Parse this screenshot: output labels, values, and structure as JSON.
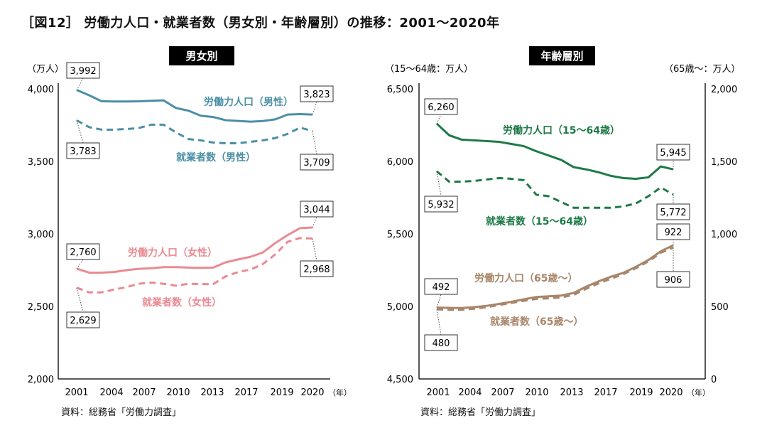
{
  "title": "［図12］ 労働力人口・就業者数（男女別・年齢層別）の推移：2001〜2020年",
  "colors": {
    "male": "#4b8fa5",
    "female": "#ea8a92",
    "young": "#1e7a46",
    "old": "#a8866a",
    "axis": "#222"
  },
  "chart_data": [
    {
      "type": "line",
      "title": "男女別",
      "ylabel": "（万人）",
      "ylim": [
        2000,
        4000
      ],
      "yticks": [
        "2,000",
        "2,500",
        "3,000",
        "3,500",
        "4,000"
      ],
      "xticks": [
        "2001",
        "2004",
        "2007",
        "2010",
        "2013",
        "2017",
        "2019",
        "2020"
      ],
      "xunit": "（年）",
      "x": [
        2001,
        2002,
        2003,
        2004,
        2005,
        2006,
        2007,
        2008,
        2009,
        2010,
        2011,
        2012,
        2013,
        2014,
        2015,
        2016,
        2017,
        2018,
        2019,
        2020
      ],
      "series": [
        {
          "name": "労働力人口（男性）",
          "style": "solid",
          "color": "#4b8fa5",
          "values": [
            3992,
            3956,
            3915,
            3913,
            3913,
            3914,
            3918,
            3921,
            3868,
            3850,
            3815,
            3806,
            3784,
            3779,
            3774,
            3778,
            3790,
            3823,
            3826,
            3823
          ],
          "start_label": "3,992",
          "end_label": "3,823"
        },
        {
          "name": "就業者数（男性）",
          "style": "dashed",
          "color": "#4b8fa5",
          "values": [
            3783,
            3736,
            3719,
            3719,
            3723,
            3730,
            3753,
            3753,
            3700,
            3654,
            3645,
            3630,
            3625,
            3625,
            3635,
            3645,
            3661,
            3690,
            3733,
            3709
          ],
          "start_label": "3,783",
          "end_label": "3,709"
        },
        {
          "name": "労働力人口（女性）",
          "style": "solid",
          "color": "#ea8a92",
          "values": [
            2760,
            2733,
            2733,
            2737,
            2750,
            2759,
            2763,
            2771,
            2771,
            2768,
            2766,
            2768,
            2804,
            2824,
            2842,
            2872,
            2937,
            2992,
            3040,
            3044
          ],
          "start_label": "2,760",
          "end_label": "3,044"
        },
        {
          "name": "就業者数（女性）",
          "style": "dashed",
          "color": "#ea8a92",
          "values": [
            2629,
            2597,
            2597,
            2616,
            2633,
            2656,
            2665,
            2656,
            2643,
            2656,
            2654,
            2654,
            2707,
            2737,
            2754,
            2792,
            2859,
            2946,
            2972,
            2968
          ],
          "start_label": "2,629",
          "end_label": "2,968"
        }
      ],
      "source": "資料：総務省「労働力調査」"
    },
    {
      "type": "line",
      "title": "年齢層別",
      "ylabel": "（15〜64歳：万人）",
      "ylabel_right": "（65歳〜：万人）",
      "ylim": [
        4500,
        6500
      ],
      "ylim_right": [
        0,
        2000
      ],
      "yticks": [
        "4,500",
        "5,000",
        "5,500",
        "6,000",
        "6,500"
      ],
      "yticks_right": [
        "0",
        "500",
        "1,000",
        "1,500",
        "2,000"
      ],
      "xticks": [
        "2001",
        "2004",
        "2007",
        "2010",
        "2013",
        "2017",
        "2019",
        "2020"
      ],
      "xunit": "（年）",
      "x": [
        2001,
        2002,
        2003,
        2004,
        2005,
        2006,
        2007,
        2008,
        2009,
        2010,
        2011,
        2012,
        2013,
        2014,
        2015,
        2016,
        2017,
        2018,
        2019,
        2020
      ],
      "series": [
        {
          "name": "労働力人口（15〜64歳）",
          "axis": "left",
          "style": "solid",
          "color": "#1e7a46",
          "values": [
            6260,
            6180,
            6150,
            6145,
            6140,
            6135,
            6120,
            6105,
            6070,
            6040,
            6010,
            5960,
            5945,
            5925,
            5900,
            5885,
            5880,
            5890,
            5965,
            5945
          ],
          "start_label": "6,260",
          "end_label": "5,945"
        },
        {
          "name": "就業者数（15〜64歳）",
          "axis": "left",
          "style": "dashed",
          "color": "#1e7a46",
          "values": [
            5932,
            5860,
            5860,
            5865,
            5875,
            5885,
            5880,
            5870,
            5770,
            5760,
            5720,
            5680,
            5680,
            5680,
            5680,
            5690,
            5710,
            5760,
            5820,
            5772
          ],
          "start_label": "5,932",
          "end_label": "5,772"
        },
        {
          "name": "労働力人口（65歳〜）",
          "axis": "right",
          "style": "solid",
          "color": "#a8866a",
          "values": [
            492,
            490,
            489,
            495,
            504,
            517,
            532,
            549,
            565,
            570,
            575,
            593,
            636,
            673,
            705,
            732,
            773,
            820,
            880,
            922
          ],
          "start_label": "492",
          "end_label": "922"
        },
        {
          "name": "就業者数（65歳〜）",
          "axis": "right",
          "style": "dashed",
          "color": "#a8866a",
          "values": [
            480,
            477,
            477,
            484,
            495,
            510,
            524,
            539,
            552,
            556,
            563,
            579,
            622,
            659,
            691,
            723,
            764,
            810,
            870,
            906
          ],
          "start_label": "480",
          "end_label": "906"
        }
      ],
      "source": "資料：総務省「労働力調査」"
    }
  ]
}
